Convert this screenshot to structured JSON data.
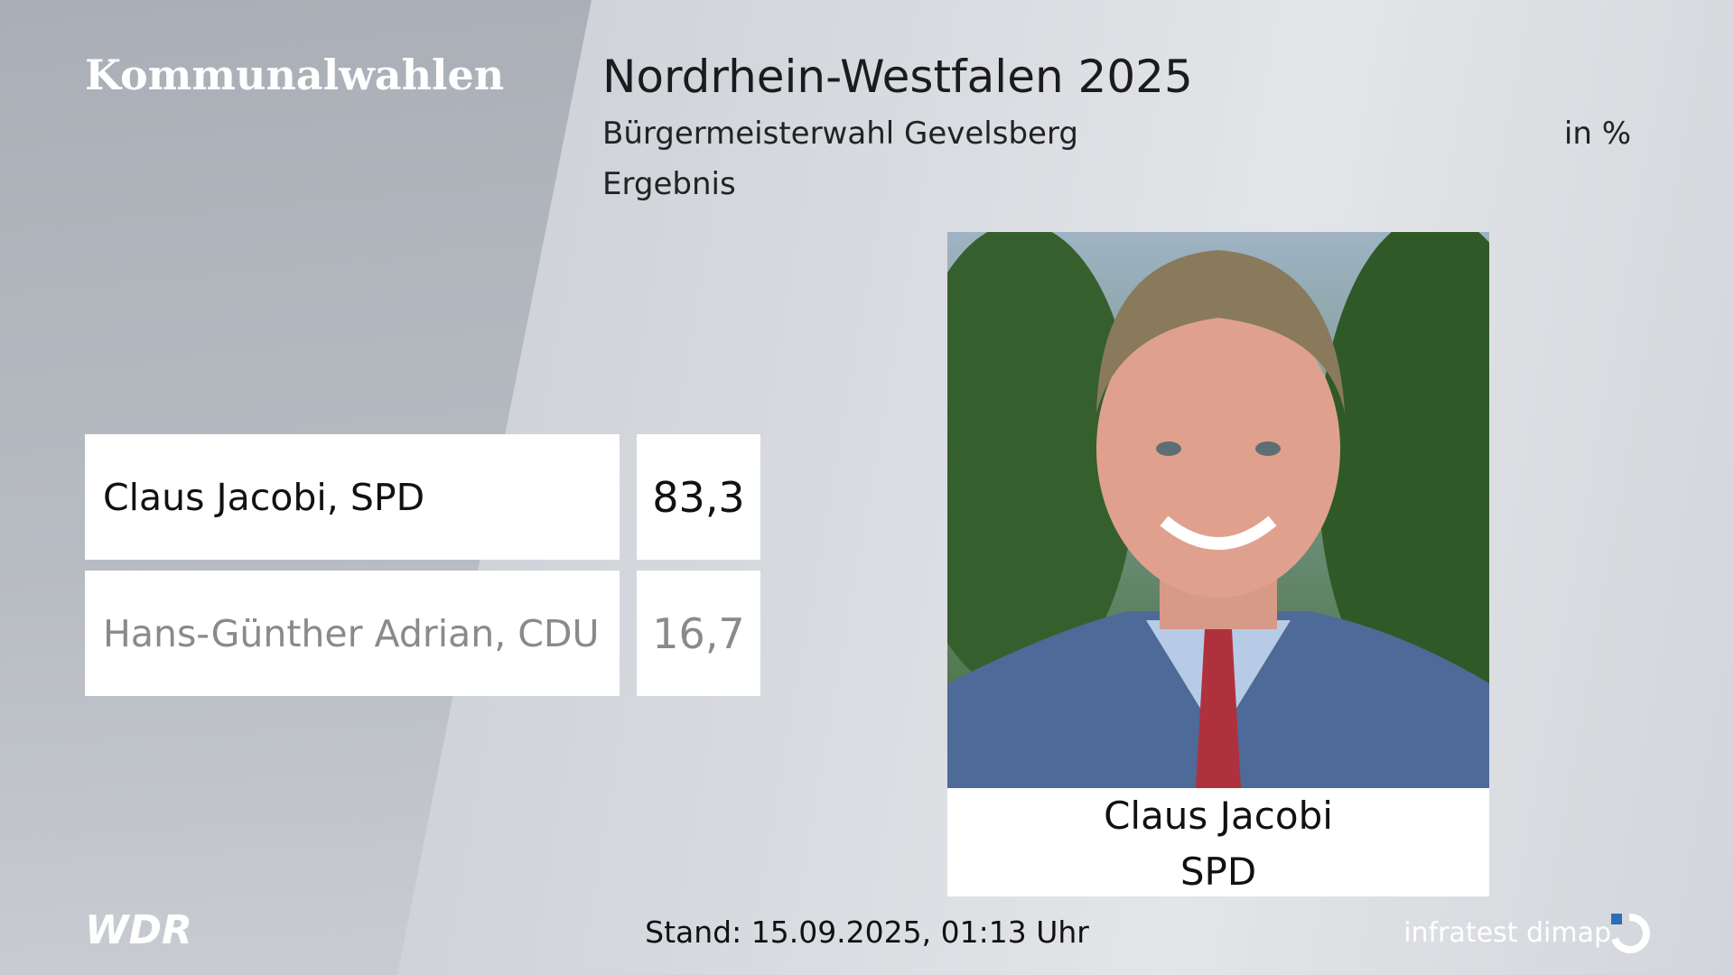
{
  "header": {
    "brand": "Kommunalwahlen",
    "title": "Nordrhein-Westfalen 2025",
    "subtitle": "Bürgermeisterwahl Gevelsberg",
    "unit": "in %",
    "status": "Ergebnis"
  },
  "results": {
    "rows": [
      [
        "Claus Jacobi, SPD",
        "83,3"
      ],
      [
        "Hans-Günther Adrian, CDU",
        "16,7"
      ]
    ]
  },
  "winner": {
    "name": "Claus Jacobi",
    "party": "SPD"
  },
  "footer": {
    "broadcaster": "WDR",
    "timestamp": "Stand: 15.09.2025, 01:13 Uhr",
    "source": "infratest dimap"
  }
}
